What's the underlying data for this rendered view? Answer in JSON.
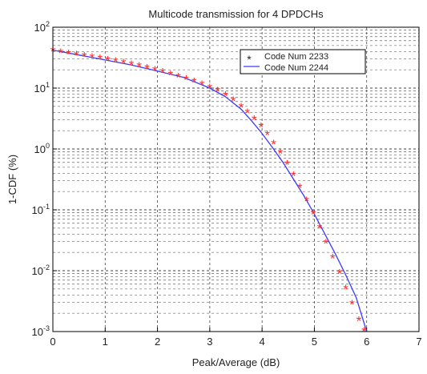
{
  "chart_data": {
    "type": "scatter",
    "title": "Multicode transmission for 4 DPDCHs",
    "xlabel": "Peak/Average (dB)",
    "ylabel": "1-CDF (%)",
    "xlim": [
      0,
      7
    ],
    "ylim": [
      0.001,
      100
    ],
    "yscale": "log",
    "grid": true,
    "legend_position": "top-right",
    "x_ticks": [
      "0",
      "1",
      "2",
      "3",
      "4",
      "5",
      "6",
      "7"
    ],
    "y_ticks": [
      {
        "base": "10",
        "exp": "2"
      },
      {
        "base": "10",
        "exp": "1"
      },
      {
        "base": "10",
        "exp": "0"
      },
      {
        "base": "10",
        "exp": "-1"
      },
      {
        "base": "10",
        "exp": "-2"
      },
      {
        "base": "10",
        "exp": "-3"
      }
    ],
    "series": [
      {
        "name": "Code Num 2233",
        "style": "markers",
        "marker": "*",
        "color": "#ff2a2a",
        "x": [
          0,
          0.15,
          0.3,
          0.45,
          0.6,
          0.75,
          0.9,
          1.05,
          1.2,
          1.35,
          1.5,
          1.65,
          1.8,
          1.95,
          2.1,
          2.25,
          2.4,
          2.55,
          2.7,
          2.85,
          3.0,
          3.15,
          3.3,
          3.45,
          3.6,
          3.72,
          3.85,
          3.98,
          4.1,
          4.22,
          4.35,
          4.48,
          4.6,
          4.72,
          4.85,
          4.98,
          5.1,
          5.22,
          5.35,
          5.48,
          5.6,
          5.72,
          5.85,
          5.95
        ],
        "y": [
          40,
          38,
          36,
          34.5,
          33,
          31.5,
          30,
          28.5,
          27,
          25.5,
          24,
          22.5,
          21,
          19.5,
          18,
          16.5,
          15,
          13.8,
          12.5,
          11.3,
          10,
          8.8,
          7.5,
          6.2,
          4.8,
          3.9,
          3.0,
          2.3,
          1.7,
          1.2,
          0.85,
          0.55,
          0.36,
          0.23,
          0.14,
          0.085,
          0.05,
          0.028,
          0.016,
          0.009,
          0.005,
          0.0028,
          0.0015,
          0.001
        ]
      },
      {
        "name": "Code Num 2244",
        "style": "line",
        "color": "#3a3aff",
        "x": [
          0,
          0.5,
          1.0,
          1.5,
          2.0,
          2.5,
          3.0,
          3.3,
          3.6,
          3.8,
          4.0,
          4.2,
          4.4,
          4.6,
          4.8,
          5.0,
          5.2,
          5.4,
          5.6,
          5.8,
          6.0
        ],
        "y": [
          42,
          35,
          29,
          24,
          19,
          15,
          10,
          7.2,
          4.5,
          2.9,
          1.8,
          1.05,
          0.6,
          0.32,
          0.17,
          0.085,
          0.04,
          0.019,
          0.0085,
          0.0036,
          0.001
        ]
      }
    ]
  }
}
